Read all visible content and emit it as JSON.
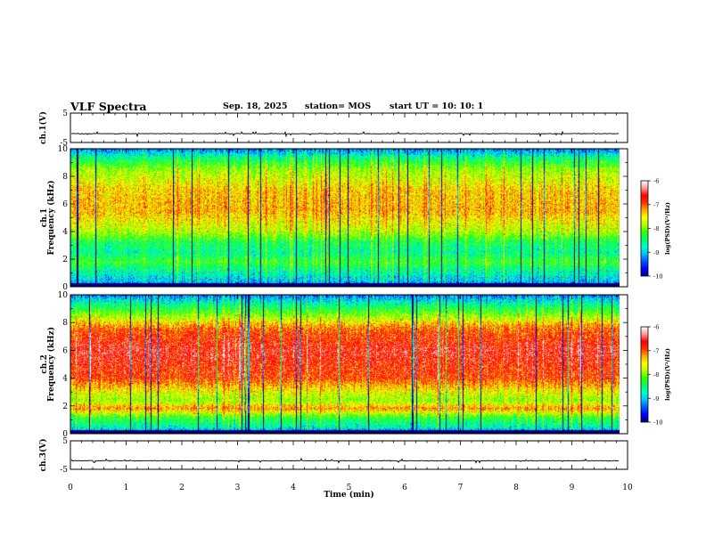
{
  "header": {
    "title": "VLF Spectra",
    "date": "Sep. 18, 2025",
    "station": "station= MOS",
    "start": "start  UT =   10: 10: 1"
  },
  "colors": {
    "colormap": [
      "#00007f",
      "#0000ff",
      "#0055ff",
      "#00bfff",
      "#00ffcc",
      "#00ff66",
      "#33ff00",
      "#b3ff00",
      "#ffff00",
      "#ffaa00",
      "#ff3300",
      "#ff0000",
      "#ff9999",
      "#ffffff"
    ]
  },
  "chart_data": [
    {
      "id": "ch1-voltage",
      "type": "line",
      "ylabel": "ch.1(V)",
      "ylim": [
        -5,
        5
      ],
      "yticks": [
        "5",
        "-5"
      ],
      "xlim": [
        0,
        10
      ],
      "baseline": -2,
      "noise": 0.3
    },
    {
      "id": "ch1-spectrogram",
      "type": "heatmap",
      "ylabel_line1": "ch.1",
      "ylabel_line2": "Frequency (kHz)",
      "ylim": [
        0,
        10
      ],
      "yticks": [
        "0",
        "2",
        "4",
        "6",
        "8",
        "10"
      ],
      "xlim": [
        0,
        9.85
      ],
      "data_end_min": 9.85,
      "color_range": [
        -10,
        -6
      ],
      "colorbar_ticks": [
        "-6",
        "-7",
        "-8",
        "-9",
        "-10"
      ],
      "colorbar_label": "log(PSD)(V²/Hz)",
      "band_profile": [
        [
          0,
          -9.6
        ],
        [
          0.4,
          -9.0
        ],
        [
          1.2,
          -8.6
        ],
        [
          1.8,
          -8.2
        ],
        [
          2.5,
          -8.6
        ],
        [
          3.2,
          -8.4
        ],
        [
          4.0,
          -7.8
        ],
        [
          5.5,
          -7.3
        ],
        [
          7.0,
          -7.4
        ],
        [
          8.5,
          -7.9
        ],
        [
          9.3,
          -8.5
        ],
        [
          10,
          -9.3
        ]
      ]
    },
    {
      "id": "ch2-spectrogram",
      "type": "heatmap",
      "ylabel_line1": "ch.2",
      "ylabel_line2": "Frequency (kHz)",
      "ylim": [
        0,
        10
      ],
      "yticks": [
        "0",
        "2",
        "4",
        "6",
        "8",
        "10"
      ],
      "xlim": [
        0,
        9.85
      ],
      "data_end_min": 9.85,
      "color_range": [
        -10,
        -6
      ],
      "colorbar_ticks": [
        "-6",
        "-7",
        "-8",
        "-9",
        "-10"
      ],
      "colorbar_label": "log(PSD)(V²/Hz)",
      "band_profile": [
        [
          0,
          -9.6
        ],
        [
          0.4,
          -8.8
        ],
        [
          1.2,
          -8.2
        ],
        [
          1.8,
          -7.2
        ],
        [
          2.4,
          -7.9
        ],
        [
          3.0,
          -7.6
        ],
        [
          4.0,
          -6.9
        ],
        [
          6.0,
          -6.6
        ],
        [
          7.5,
          -7.0
        ],
        [
          8.5,
          -7.9
        ],
        [
          9.3,
          -8.6
        ],
        [
          10,
          -9.3
        ]
      ]
    },
    {
      "id": "ch3-voltage",
      "type": "line",
      "ylabel": "ch.3(V)",
      "ylim": [
        -5,
        5
      ],
      "yticks": [
        "5",
        "-5"
      ],
      "xlim": [
        0,
        10
      ],
      "baseline": -2,
      "noise": 0.3
    }
  ],
  "x_axis": {
    "label": "Time  (min)",
    "range": [
      0,
      10
    ],
    "ticks": [
      "0",
      "1",
      "2",
      "3",
      "4",
      "5",
      "6",
      "7",
      "8",
      "9",
      "10"
    ]
  }
}
